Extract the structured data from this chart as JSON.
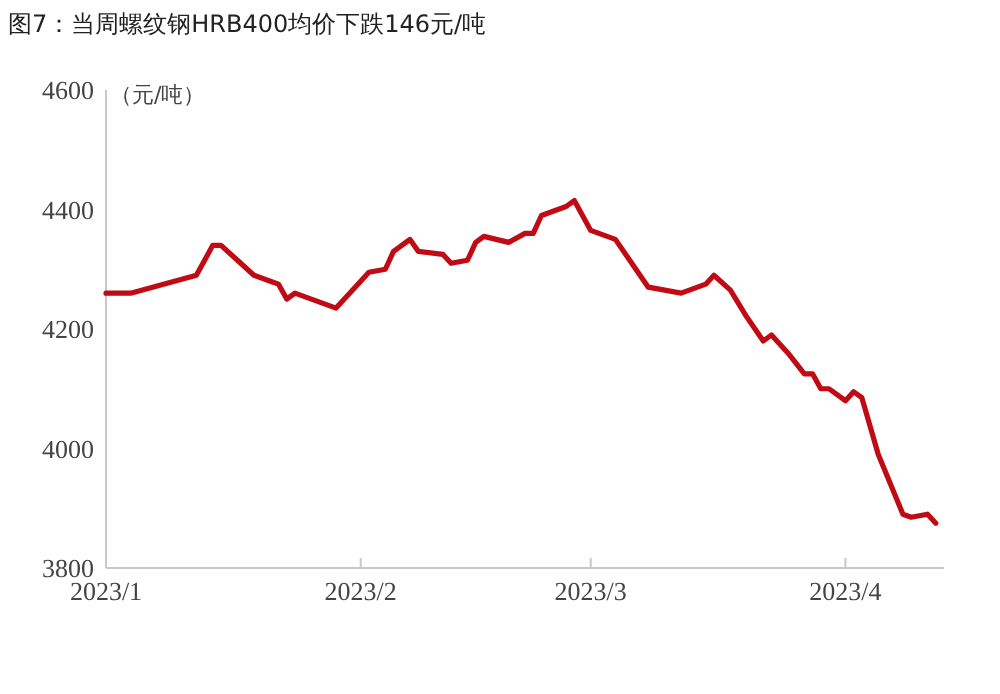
{
  "chart_data": {
    "type": "line",
    "title": "图7：当周螺纹钢HRB400均价下跌146元/吨",
    "ylabel": "（元/吨）",
    "x": [
      "2023-01-01",
      "2023-01-04",
      "2023-01-12",
      "2023-01-14",
      "2023-01-15",
      "2023-01-17",
      "2023-01-19",
      "2023-01-21",
      "2023-01-22",
      "2023-01-23",
      "2023-01-24",
      "2023-01-29",
      "2023-02-01",
      "2023-02-02",
      "2023-02-04",
      "2023-02-05",
      "2023-02-07",
      "2023-02-08",
      "2023-02-11",
      "2023-02-12",
      "2023-02-14",
      "2023-02-15",
      "2023-02-16",
      "2023-02-19",
      "2023-02-21",
      "2023-02-22",
      "2023-02-23",
      "2023-02-26",
      "2023-02-27",
      "2023-03-01",
      "2023-03-04",
      "2023-03-08",
      "2023-03-12",
      "2023-03-15",
      "2023-03-16",
      "2023-03-18",
      "2023-03-20",
      "2023-03-22",
      "2023-03-23",
      "2023-03-25",
      "2023-03-27",
      "2023-03-28",
      "2023-03-29",
      "2023-03-30",
      "2023-04-01",
      "2023-04-02",
      "2023-04-03",
      "2023-04-05",
      "2023-04-08",
      "2023-04-09",
      "2023-04-11",
      "2023-04-12"
    ],
    "series": [
      {
        "color": "#c00a14",
        "values": [
          4260,
          4260,
          4290,
          4340,
          4340,
          4315,
          4290,
          4280,
          4275,
          4250,
          4260,
          4235,
          4280,
          4295,
          4300,
          4330,
          4350,
          4330,
          4325,
          4310,
          4315,
          4345,
          4355,
          4345,
          4360,
          4360,
          4390,
          4405,
          4415,
          4365,
          4350,
          4270,
          4260,
          4275,
          4290,
          4265,
          4220,
          4180,
          4190,
          4160,
          4125,
          4125,
          4100,
          4100,
          4080,
          4095,
          4085,
          3990,
          3890,
          3885,
          3890,
          3875
        ]
      }
    ],
    "xlim": [
      "2023-01-01",
      "2023-04-13"
    ],
    "xticks": [
      {
        "value": "2023-01-01",
        "label": "2023/1"
      },
      {
        "value": "2023-02-01",
        "label": "2023/2"
      },
      {
        "value": "2023-03-01",
        "label": "2023/3"
      },
      {
        "value": "2023-04-01",
        "label": "2023/4"
      }
    ],
    "ylim": [
      3800,
      4600
    ],
    "yticks": [
      3800,
      4000,
      4200,
      4400,
      4600
    ]
  }
}
